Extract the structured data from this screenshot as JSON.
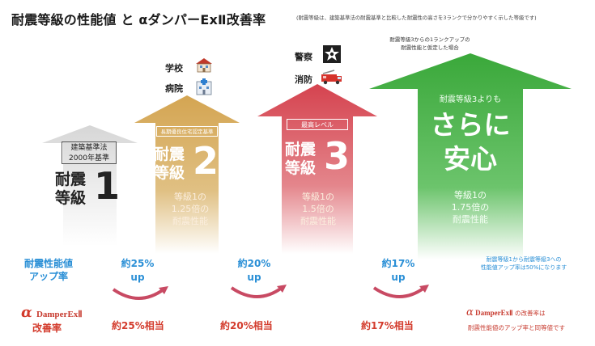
{
  "header": {
    "title": "耐震等級の性能値 と αダンパーExⅡ改善率",
    "subtitle": "(耐震等級は、建築基準法の耐震基準と比較した耐震性の高さを3ランクで分かりやすく示した等級です)"
  },
  "icons": {
    "school_label": "学校",
    "hospital_label": "病院",
    "police_label": "警察",
    "fire_label": "消防"
  },
  "arrows": {
    "grade1": {
      "box_line1": "建築基準法",
      "box_line2": "2000年基準",
      "title_line1": "耐震",
      "title_line2": "等級",
      "number": "1"
    },
    "grade2": {
      "box": "長期優良住宅認定基準",
      "title_line1": "耐震",
      "title_line2": "等級",
      "number": "2",
      "desc_line1": "等級1の",
      "desc_line2": "1.25倍の",
      "desc_line3": "耐震性能"
    },
    "grade3": {
      "box": "最高レベル",
      "title_line1": "耐震",
      "title_line2": "等級",
      "number": "3",
      "desc_line1": "等級1の",
      "desc_line2": "1.5倍の",
      "desc_line3": "耐震性能"
    },
    "extra": {
      "note_line1": "耐震等級3からの1ランクアップの",
      "note_line2": "耐震性能と仮定した場合",
      "lead": "耐震等級3よりも",
      "big_line1": "さらに",
      "big_line2": "安心",
      "desc_line1": "等級1の",
      "desc_line2": "1.75倍の",
      "desc_line3": "耐震性能"
    }
  },
  "rates": {
    "label_line1": "耐震性能値",
    "label_line2": "アップ率",
    "r1_line1": "約25%",
    "r1_line2": "up",
    "r2_line1": "約20%",
    "r2_line2": "up",
    "r3_line1": "約17%",
    "r3_line2": "up",
    "note_line1": "耐震等級1から耐震等級3への",
    "note_line2": "性能値アップ率は50%になります"
  },
  "improvement": {
    "logo_alpha": "α",
    "logo_text": "DamperExⅡ",
    "label": "改善率",
    "v1": "約25%相当",
    "v2": "約20%相当",
    "v3": "約17%相当",
    "note_logo_text": "DamperExⅡ",
    "note_line1_suffix": "の改善率は",
    "note_line2": "耐震性能値のアップ率と同等値です"
  },
  "colors": {
    "grade1": "#e3e3e3",
    "grade2": "#d8ae5a",
    "grade3": "#d9545e",
    "extra": "#43b043",
    "blue": "#2a8fd6",
    "red": "#d33b2c"
  }
}
